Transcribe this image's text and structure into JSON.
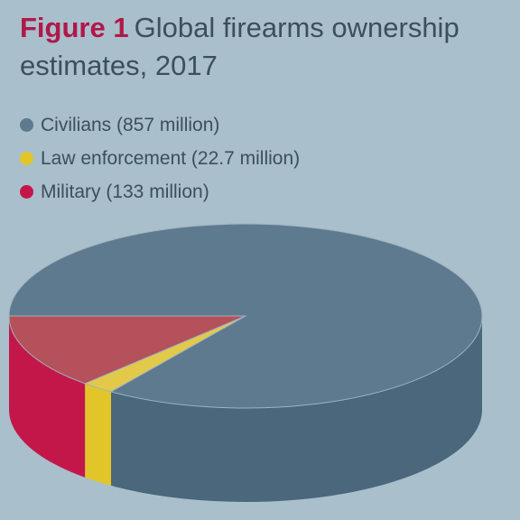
{
  "figure_label": "Figure 1",
  "title": "Global firearms ownership estimates, 2017",
  "colors": {
    "background": "#a9bfcc",
    "civilians_top": "#5e7a8e",
    "civilians_side": "#4a677b",
    "law_top": "#e2c94a",
    "law_side": "#e2c629",
    "military_top": "#b5515a",
    "military_side": "#c3174a"
  },
  "chart_data": {
    "type": "pie",
    "title": "Global firearms ownership estimates, 2017",
    "series": [
      {
        "name": "Civilians",
        "value": 857,
        "legend": "Civilians (857 million)",
        "icon": "circle-dot",
        "color": "#5e7a8e"
      },
      {
        "name": "Law enforcement",
        "value": 22.7,
        "legend": "Law enforcement (22.7 million)",
        "icon": "circle-dot",
        "color": "#e2c629"
      },
      {
        "name": "Military",
        "value": 133,
        "legend": "Military (133 million)",
        "icon": "circle-dot",
        "color": "#c3174a"
      }
    ],
    "legend_position": "top-left",
    "style": "3d"
  }
}
